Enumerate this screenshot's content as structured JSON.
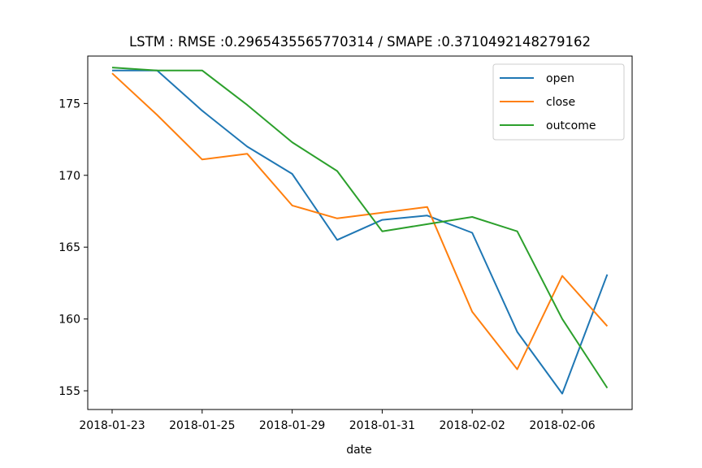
{
  "chart_data": {
    "type": "line",
    "title": "LSTM : RMSE :0.2965435565770314 / SMAPE :0.3710492148279162",
    "xlabel": "date",
    "ylabel": "",
    "x": [
      "2018-01-23",
      "2018-01-24",
      "2018-01-25",
      "2018-01-26",
      "2018-01-29",
      "2018-01-30",
      "2018-01-31",
      "2018-02-01",
      "2018-02-02",
      "2018-02-05",
      "2018-02-06",
      "2018-02-07"
    ],
    "x_ticks": [
      "2018-01-23",
      "2018-01-25",
      "2018-01-29",
      "2018-01-31",
      "2018-02-02",
      "2018-02-06"
    ],
    "y_ticks": [
      155,
      160,
      165,
      170,
      175
    ],
    "ylim": [
      153.7,
      178.3
    ],
    "grid": false,
    "legend_position": "top-right",
    "series": [
      {
        "name": "open",
        "color": "#1f77b4",
        "values": [
          177.3,
          177.3,
          174.5,
          172.0,
          170.1,
          165.5,
          166.9,
          167.2,
          166.0,
          159.1,
          154.8,
          163.1
        ]
      },
      {
        "name": "close",
        "color": "#ff7f0e",
        "values": [
          177.1,
          174.2,
          171.1,
          171.5,
          167.9,
          167.0,
          167.4,
          167.8,
          160.5,
          156.5,
          163.0,
          159.5
        ]
      },
      {
        "name": "outcome",
        "color": "#2ca02c",
        "values": [
          177.5,
          177.3,
          177.3,
          174.9,
          172.3,
          170.3,
          166.1,
          166.6,
          167.1,
          166.1,
          160.0,
          155.2
        ]
      }
    ]
  }
}
